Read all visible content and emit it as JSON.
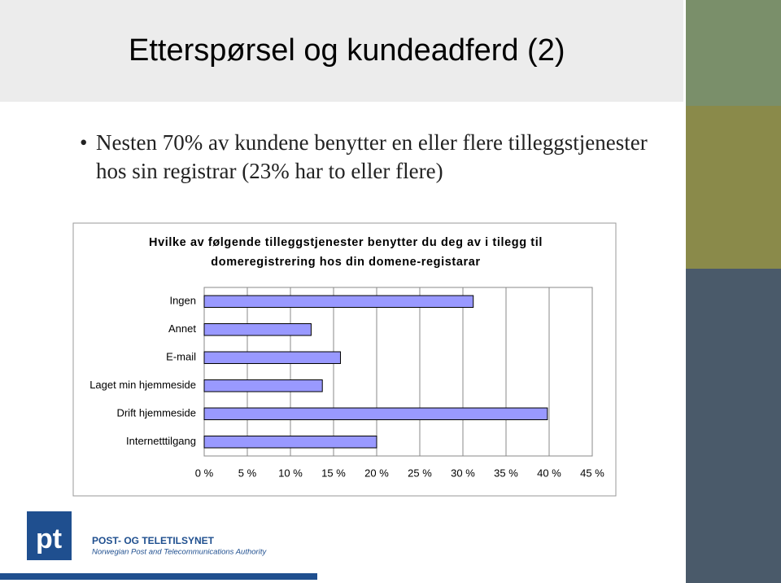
{
  "slide": {
    "title": "Etterspørsel og kundeadferd (2)",
    "bullet": "Nesten 70% av kundene benytter en eller flere tilleggstjenester hos sin registrar (23% har to eller flere)"
  },
  "logo": {
    "mark": "pt",
    "name": "POST- OG TELETILSYNET",
    "subtitle": "Norwegian Post and Telecommunications Authority"
  },
  "chart_data": {
    "type": "bar",
    "orientation": "horizontal",
    "title": "Hvilke av følgende tilleggstjenester benytter du deg av i tilegg til domeregistrering hos din domene-registarar",
    "categories": [
      "Ingen",
      "Annet",
      "E-mail",
      "Laget min hjemmeside",
      "Drift hjemmeside",
      "Internetttilgang"
    ],
    "values": [
      31.2,
      12.4,
      15.8,
      13.7,
      39.8,
      20.0
    ],
    "color": "#9999ff",
    "xlim": [
      0,
      45
    ],
    "xticks": [
      {
        "value": 0,
        "label": "0 %"
      },
      {
        "value": 5,
        "label": "5 %"
      },
      {
        "value": 10,
        "label": "10 %"
      },
      {
        "value": 15,
        "label": "15 %"
      },
      {
        "value": 20,
        "label": "20 %"
      },
      {
        "value": 25,
        "label": "25 %"
      },
      {
        "value": 30,
        "label": "30 %"
      },
      {
        "value": 35,
        "label": "35 %"
      },
      {
        "value": 40,
        "label": "40 %"
      },
      {
        "value": 45,
        "label": "45 %"
      }
    ],
    "grid": true
  }
}
